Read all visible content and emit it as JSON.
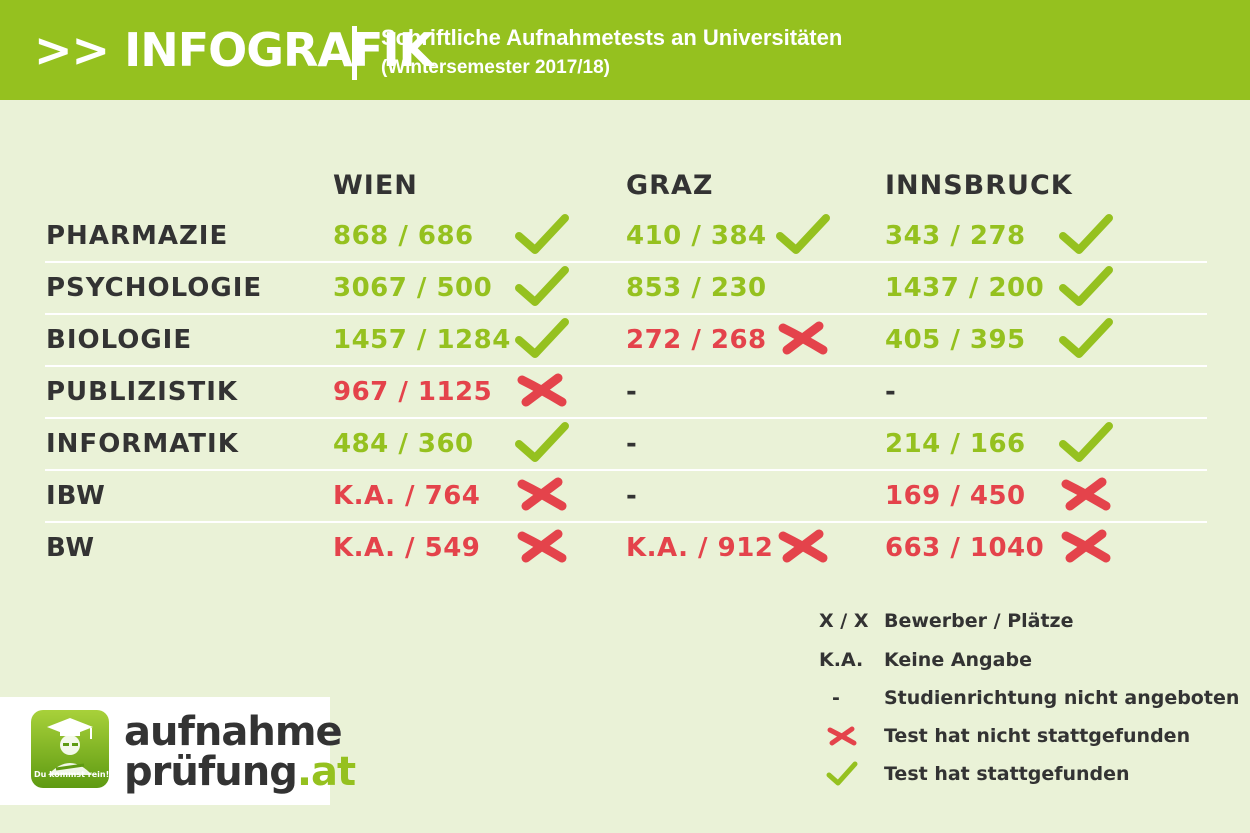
{
  "header": {
    "title": ">> INFOGRAFIK",
    "subtitle": "Schriftliche Aufnahmetests an Universitäten",
    "semester": "(Wintersemester 2017/18)"
  },
  "columns": [
    "WIEN",
    "GRAZ",
    "INNSBRUCK"
  ],
  "rows": [
    {
      "label": "PHARMAZIE",
      "cells": [
        {
          "value": "868 / 686",
          "status": "green",
          "mark": "check"
        },
        {
          "value": "410 / 384",
          "status": "green",
          "mark": "check"
        },
        {
          "value": "343 / 278",
          "status": "green",
          "mark": "check"
        }
      ]
    },
    {
      "label": "PSYCHOLOGIE",
      "cells": [
        {
          "value": "3067 / 500",
          "status": "green",
          "mark": "check"
        },
        {
          "value": "853 / 230",
          "status": "green",
          "mark": "none"
        },
        {
          "value": "1437 / 200",
          "status": "green",
          "mark": "check"
        }
      ]
    },
    {
      "label": "BIOLOGIE",
      "cells": [
        {
          "value": "1457 / 1284",
          "status": "green",
          "mark": "check"
        },
        {
          "value": "272 / 268",
          "status": "red",
          "mark": "cross"
        },
        {
          "value": "405 / 395",
          "status": "green",
          "mark": "check"
        }
      ]
    },
    {
      "label": "PUBLIZISTIK",
      "cells": [
        {
          "value": "967 / 1125",
          "status": "red",
          "mark": "cross"
        },
        {
          "value": "-",
          "status": "dash",
          "mark": "none"
        },
        {
          "value": "-",
          "status": "dash",
          "mark": "none"
        }
      ]
    },
    {
      "label": "INFORMATIK",
      "cells": [
        {
          "value": "484 / 360",
          "status": "green",
          "mark": "check"
        },
        {
          "value": "-",
          "status": "dash",
          "mark": "none"
        },
        {
          "value": "214 / 166",
          "status": "green",
          "mark": "check"
        }
      ]
    },
    {
      "label": "IBW",
      "cells": [
        {
          "value": "K.A. / 764",
          "status": "red",
          "mark": "cross"
        },
        {
          "value": "-",
          "status": "dash",
          "mark": "none"
        },
        {
          "value": "169 / 450",
          "status": "red",
          "mark": "cross"
        }
      ]
    },
    {
      "label": "BW",
      "cells": [
        {
          "value": "K.A. / 549",
          "status": "red",
          "mark": "cross"
        },
        {
          "value": "K.A. / 912",
          "status": "red",
          "mark": "cross"
        },
        {
          "value": "663 / 1040",
          "status": "red",
          "mark": "cross"
        }
      ]
    }
  ],
  "legend": [
    {
      "key": "X / X",
      "desc": "Bewerber / Plätze",
      "icon": "none"
    },
    {
      "key": "K.A.",
      "desc": "Keine Angabe",
      "icon": "none"
    },
    {
      "key": "-",
      "desc": "Studienrichtung nicht angeboten",
      "icon": "none"
    },
    {
      "key": "",
      "desc": "Test hat nicht stattgefunden",
      "icon": "cross"
    },
    {
      "key": "",
      "desc": "Test hat stattgefunden",
      "icon": "check"
    }
  ],
  "logo": {
    "line1": "aufnahme",
    "line2": "prüfung",
    "tld": ".at",
    "badge_text": "Du kommst rein!"
  },
  "colors": {
    "brand_green": "#95c11f",
    "cross_red": "#e4434b",
    "text_dark": "#333333",
    "background": "#eaf2d7"
  }
}
